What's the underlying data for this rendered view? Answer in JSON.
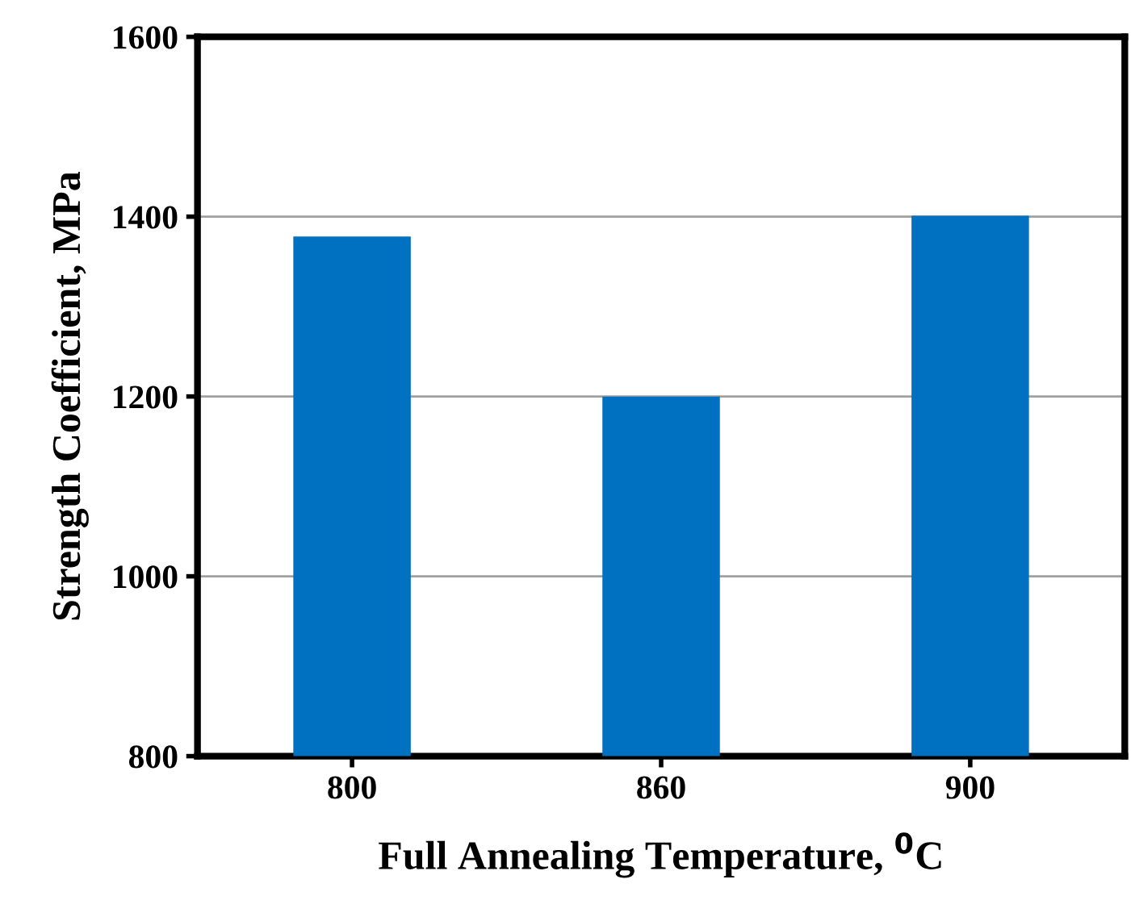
{
  "chart_data": {
    "type": "bar",
    "xlabel": "Full Annealing Temperature, $^{0}$C",
    "ylabel": "Strength Coefficient, MPa",
    "categories": [
      "800",
      "860",
      "900"
    ],
    "values": [
      1378,
      1200,
      1401
    ],
    "color": "#0070c0",
    "ylim": [
      800,
      1600
    ],
    "yticks": [
      800,
      1000,
      1200,
      1400,
      1600
    ],
    "grid": "y",
    "legend": false
  }
}
